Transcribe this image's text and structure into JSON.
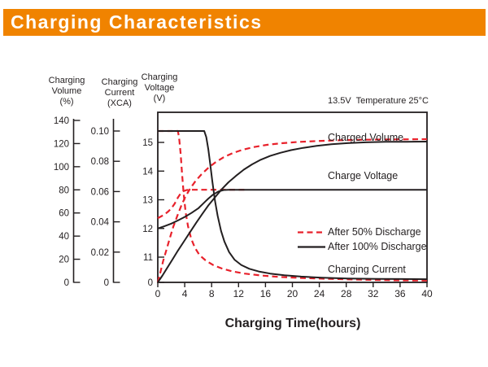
{
  "header": {
    "title": "Charging Characteristics",
    "bar_color": "#F08300",
    "text_color": "#FFFFFF"
  },
  "chart_data": {
    "type": "line",
    "annotation": "13.5V  Temperature 25°C",
    "xlabel": "Charging Time(hours)",
    "x_ticks": [
      0,
      4,
      8,
      12,
      16,
      20,
      24,
      28,
      32,
      36,
      40
    ],
    "x_range": [
      0,
      40
    ],
    "grid": false,
    "colors": {
      "line_dark": "#231F20",
      "line_red": "#E8212B"
    },
    "axes": {
      "volume": {
        "label_lines": [
          "Charging",
          "Volume",
          "(%)"
        ],
        "ticks": [
          "0",
          "20",
          "40",
          "60",
          "80",
          "100",
          "120",
          "140"
        ],
        "tick_values": [
          0,
          20,
          40,
          60,
          80,
          100,
          120,
          140
        ],
        "range": [
          0,
          140
        ]
      },
      "current": {
        "label_lines": [
          "Charging",
          "Current",
          "(XCA)"
        ],
        "ticks": [
          "0",
          "0.02",
          "0.04",
          "0.06",
          "0.08",
          "0.10"
        ],
        "tick_values": [
          0,
          0.02,
          0.04,
          0.06,
          0.08,
          0.1
        ],
        "range": [
          0,
          0.1
        ]
      },
      "voltage": {
        "label_lines": [
          "Charging",
          "Voltage",
          "(V)"
        ],
        "ticks": [
          "0",
          "11",
          "12",
          "13",
          "14",
          "15"
        ],
        "tick_values": [
          0,
          11,
          12,
          13,
          14,
          15
        ],
        "range_shown": [
          11,
          15
        ],
        "scale_break": true
      }
    },
    "inline_labels": {
      "charged_volume": "Charged Volume",
      "charge_voltage": "Charge Voltage",
      "charging_current": "Charging Current"
    },
    "legend": [
      {
        "label": "After 50% Discharge",
        "style": "dashed",
        "color": "#E8212B"
      },
      {
        "label": "After 100% Discharge",
        "style": "solid",
        "color": "#231F20"
      }
    ],
    "legend_position": "inside-right",
    "series": [
      {
        "id": "volume_50",
        "measure": "Charged Volume",
        "condition": "After 50% Discharge",
        "axis": "volume",
        "style": "dashed",
        "color": "#E8212B",
        "points": [
          [
            0,
            0
          ],
          [
            0.4,
            9
          ],
          [
            0.8,
            18.5
          ],
          [
            1.3,
            28.5
          ],
          [
            1.8,
            38.5
          ],
          [
            2.3,
            48
          ],
          [
            2.9,
            57.5
          ],
          [
            3.5,
            66.5
          ],
          [
            4.1,
            74
          ],
          [
            4.8,
            81
          ],
          [
            5.6,
            87.5
          ],
          [
            6.5,
            93.5
          ],
          [
            7.5,
            99
          ],
          [
            8.6,
            104
          ],
          [
            9.8,
            108.2
          ],
          [
            11.1,
            111.7
          ],
          [
            12.6,
            114.7
          ],
          [
            14.3,
            117
          ],
          [
            16.2,
            118.9
          ],
          [
            18.4,
            120.3
          ],
          [
            20.9,
            121.4
          ],
          [
            23.8,
            122.2
          ],
          [
            27.1,
            122.9
          ],
          [
            30.9,
            123.3
          ],
          [
            35.2,
            123.6
          ],
          [
            40,
            123.8
          ]
        ]
      },
      {
        "id": "voltage_50",
        "measure": "Charge Voltage",
        "condition": "After 50% Discharge",
        "axis": "voltage",
        "style": "dashed",
        "color": "#E8212B",
        "points": [
          [
            0,
            12.36
          ],
          [
            0.5,
            12.42
          ],
          [
            1.0,
            12.49
          ],
          [
            1.5,
            12.58
          ],
          [
            2.0,
            12.7
          ],
          [
            2.5,
            12.86
          ],
          [
            3.0,
            13.08
          ],
          [
            3.4,
            13.22
          ],
          [
            3.8,
            13.3
          ],
          [
            4.3,
            13.34
          ],
          [
            5.0,
            13.35
          ],
          [
            13,
            13.35
          ]
        ]
      },
      {
        "id": "current_50",
        "measure": "Charging Current",
        "condition": "After 50% Discharge",
        "axis": "current",
        "style": "dashed",
        "color": "#E8212B",
        "points": [
          [
            0,
            0.1
          ],
          [
            3.0,
            0.1
          ],
          [
            3.2,
            0.094
          ],
          [
            3.4,
            0.085
          ],
          [
            3.6,
            0.072
          ],
          [
            3.85,
            0.058
          ],
          [
            4.15,
            0.046
          ],
          [
            4.5,
            0.037
          ],
          [
            4.95,
            0.029
          ],
          [
            5.5,
            0.023
          ],
          [
            6.2,
            0.018
          ],
          [
            7.1,
            0.0145
          ],
          [
            8.2,
            0.0115
          ],
          [
            9.5,
            0.0092
          ],
          [
            11.0,
            0.0073
          ],
          [
            12.9,
            0.0058
          ],
          [
            15.2,
            0.0046
          ],
          [
            18.0,
            0.0036
          ],
          [
            21.4,
            0.0029
          ],
          [
            25.5,
            0.0023
          ],
          [
            30.3,
            0.0018
          ],
          [
            35.0,
            0.0014
          ],
          [
            40,
            0.0012
          ]
        ]
      },
      {
        "id": "volume_100",
        "measure": "Charged Volume",
        "condition": "After 100% Discharge",
        "axis": "volume",
        "style": "solid",
        "color": "#231F20",
        "points": [
          [
            0,
            0
          ],
          [
            0.7,
            6
          ],
          [
            1.4,
            12.5
          ],
          [
            2.2,
            20
          ],
          [
            3.0,
            27.5
          ],
          [
            3.9,
            35.5
          ],
          [
            4.8,
            43.5
          ],
          [
            5.7,
            51.5
          ],
          [
            6.6,
            59
          ],
          [
            7.5,
            66.5
          ],
          [
            8.5,
            73.5
          ],
          [
            9.5,
            80.5
          ],
          [
            10.5,
            86.5
          ],
          [
            11.6,
            92
          ],
          [
            12.8,
            97.5
          ],
          [
            14.0,
            102
          ],
          [
            15.3,
            106
          ],
          [
            16.7,
            109.3
          ],
          [
            18.2,
            112
          ],
          [
            19.8,
            114.3
          ],
          [
            21.6,
            116.3
          ],
          [
            23.6,
            118
          ],
          [
            25.8,
            119.4
          ],
          [
            28.2,
            120.4
          ],
          [
            30.9,
            121.1
          ],
          [
            33.9,
            121.5
          ],
          [
            37,
            121.6
          ],
          [
            40,
            121.7
          ]
        ]
      },
      {
        "id": "voltage_100",
        "measure": "Charge Voltage",
        "condition": "After 100% Discharge",
        "axis": "voltage",
        "style": "solid",
        "color": "#231F20",
        "points": [
          [
            0,
            12.0
          ],
          [
            1.0,
            12.08
          ],
          [
            2.0,
            12.17
          ],
          [
            3.0,
            12.28
          ],
          [
            4.0,
            12.4
          ],
          [
            5.0,
            12.54
          ],
          [
            6.0,
            12.7
          ],
          [
            6.8,
            12.88
          ],
          [
            7.5,
            13.04
          ],
          [
            8.2,
            13.18
          ],
          [
            9.0,
            13.29
          ],
          [
            9.8,
            13.34
          ],
          [
            10.5,
            13.35
          ],
          [
            40,
            13.35
          ]
        ]
      },
      {
        "id": "current_100",
        "measure": "Charging Current",
        "condition": "After 100% Discharge",
        "axis": "current",
        "style": "solid",
        "color": "#231F20",
        "points": [
          [
            0,
            0.1
          ],
          [
            6.9,
            0.1
          ],
          [
            7.2,
            0.096
          ],
          [
            7.5,
            0.088
          ],
          [
            7.8,
            0.078
          ],
          [
            8.1,
            0.067
          ],
          [
            8.5,
            0.054
          ],
          [
            8.9,
            0.044
          ],
          [
            9.4,
            0.034
          ],
          [
            9.9,
            0.027
          ],
          [
            10.6,
            0.02
          ],
          [
            11.4,
            0.015
          ],
          [
            12.4,
            0.0115
          ],
          [
            13.6,
            0.009
          ],
          [
            15.0,
            0.0072
          ],
          [
            16.7,
            0.0058
          ],
          [
            18.8,
            0.0047
          ],
          [
            21.3,
            0.0038
          ],
          [
            24.4,
            0.0031
          ],
          [
            28.2,
            0.0026
          ],
          [
            32.8,
            0.0023
          ],
          [
            36.5,
            0.0022
          ],
          [
            40,
            0.0021
          ]
        ]
      }
    ]
  }
}
